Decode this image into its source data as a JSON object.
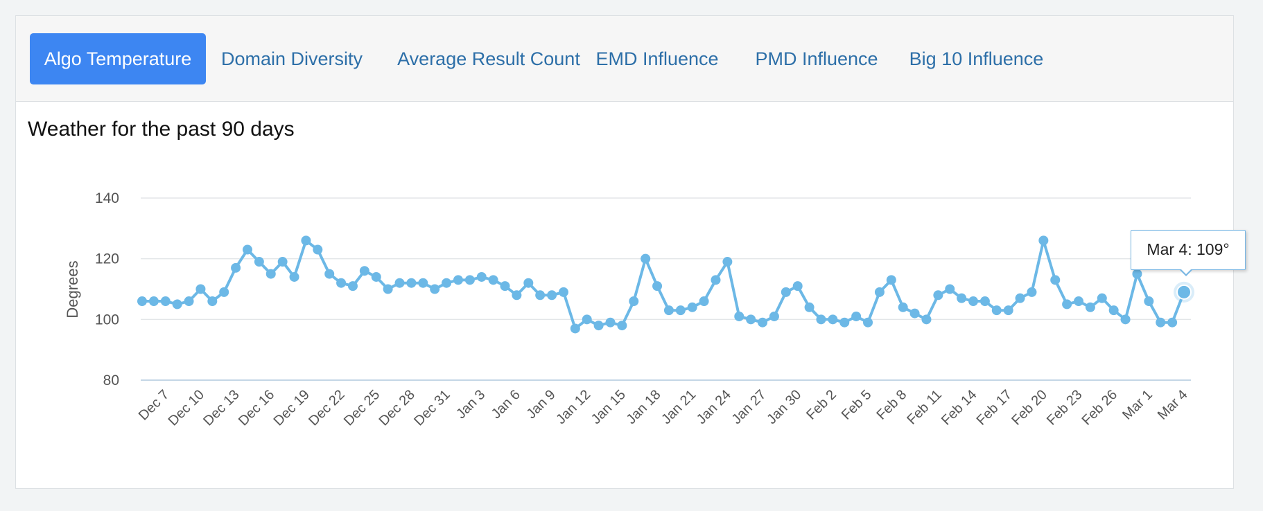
{
  "tabs": [
    {
      "label": "Algo Temperature",
      "active": true
    },
    {
      "label": "Domain Diversity",
      "active": false
    },
    {
      "label": "Average Result Count",
      "active": false
    },
    {
      "label": "EMD Influence",
      "active": false
    },
    {
      "label": "PMD Influence",
      "active": false
    },
    {
      "label": "Big 10 Influence",
      "active": false
    }
  ],
  "colors": {
    "accent": "#3d86f2",
    "series": "#6cb8e6",
    "tab_text": "#2d6fa8"
  },
  "tooltip": {
    "text": "Mar 4: 109°"
  },
  "chart_data": {
    "type": "line",
    "title": "Weather for the past 90 days",
    "xlabel": "",
    "ylabel": "Degrees",
    "ylim": [
      80,
      140
    ],
    "yticks": [
      80,
      100,
      120,
      140
    ],
    "grid": true,
    "xtick_labels": [
      "Dec 7",
      "Dec 10",
      "Dec 13",
      "Dec 16",
      "Dec 19",
      "Dec 22",
      "Dec 25",
      "Dec 28",
      "Dec 31",
      "Jan 3",
      "Jan 6",
      "Jan 9",
      "Jan 12",
      "Jan 15",
      "Jan 18",
      "Jan 21",
      "Jan 24",
      "Jan 27",
      "Jan 30",
      "Feb 2",
      "Feb 5",
      "Feb 8",
      "Feb 11",
      "Feb 14",
      "Feb 17",
      "Feb 20",
      "Feb 23",
      "Feb 26",
      "Mar 1",
      "Mar 4"
    ],
    "x_start": "Dec 5",
    "x_end": "Mar 4",
    "tick_every": 3,
    "series": [
      {
        "name": "Degrees",
        "values": [
          106,
          106,
          106,
          105,
          106,
          110,
          106,
          109,
          117,
          123,
          119,
          115,
          119,
          114,
          126,
          123,
          115,
          112,
          111,
          116,
          114,
          110,
          112,
          112,
          112,
          110,
          112,
          113,
          113,
          114,
          113,
          111,
          108,
          112,
          108,
          108,
          109,
          97,
          100,
          98,
          99,
          98,
          106,
          120,
          111,
          103,
          103,
          104,
          106,
          113,
          119,
          101,
          100,
          99,
          101,
          109,
          111,
          104,
          100,
          100,
          99,
          101,
          99,
          109,
          113,
          104,
          102,
          100,
          108,
          110,
          107,
          106,
          106,
          103,
          103,
          107,
          109,
          126,
          113,
          105,
          106,
          104,
          107,
          103,
          100,
          115,
          106,
          99,
          99,
          109
        ],
        "highlighted": {
          "label": "Mar 4",
          "value": 109
        }
      }
    ]
  }
}
